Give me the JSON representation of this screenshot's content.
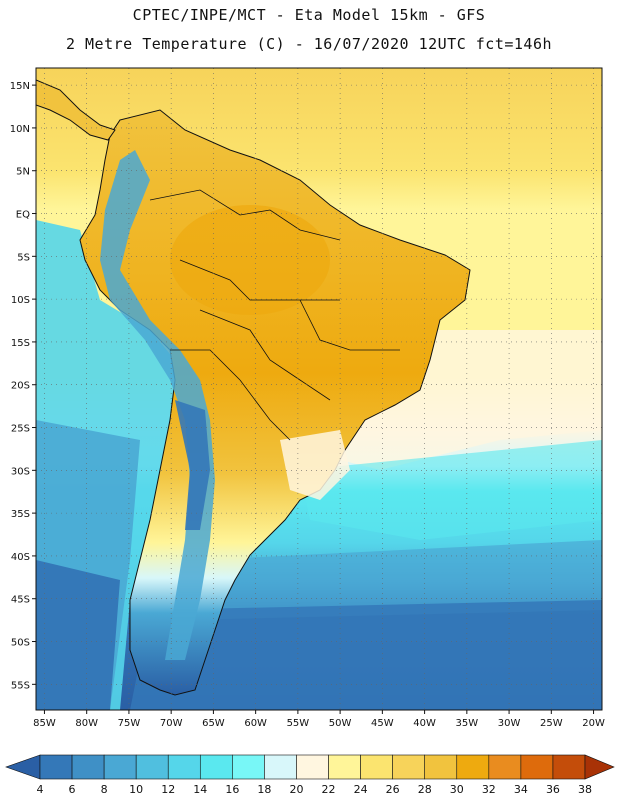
{
  "header": {
    "line1": "CPTEC/INPE/MCT -  Eta Model 15km - GFS",
    "line2": "2 Metre Temperature (C) - 16/07/2020 12UTC fct=146h"
  },
  "axes": {
    "lon_labels": [
      "85W",
      "80W",
      "75W",
      "70W",
      "65W",
      "60W",
      "55W",
      "50W",
      "45W",
      "40W",
      "35W",
      "30W",
      "25W",
      "20W"
    ],
    "lon_values": [
      -85,
      -80,
      -75,
      -70,
      -65,
      -60,
      -55,
      -50,
      -45,
      -40,
      -35,
      -30,
      -25,
      -20
    ],
    "lat_labels": [
      "15N",
      "10N",
      "5N",
      "EQ",
      "5S",
      "10S",
      "15S",
      "20S",
      "25S",
      "30S",
      "35S",
      "40S",
      "45S",
      "50S",
      "55S"
    ],
    "lat_values": [
      15,
      10,
      5,
      0,
      -5,
      -10,
      -15,
      -20,
      -25,
      -30,
      -35,
      -40,
      -45,
      -50,
      -55
    ],
    "lon_range": [
      -86,
      -19
    ],
    "lat_range": [
      -58,
      17
    ],
    "grid": "dotted"
  },
  "colorbar": {
    "labels": [
      "4",
      "6",
      "8",
      "10",
      "12",
      "14",
      "16",
      "18",
      "20",
      "22",
      "24",
      "26",
      "28",
      "30",
      "32",
      "34",
      "36",
      "38"
    ],
    "colors": [
      "#2a5fa5",
      "#3478b8",
      "#3f90c6",
      "#4aa8d4",
      "#50bfdf",
      "#55d6ea",
      "#5ae8ef",
      "#78f7f7",
      "#d8f7fa",
      "#fff6e0",
      "#fff599",
      "#fbe46f",
      "#f7d35a",
      "#f1c33e",
      "#eeaa0f",
      "#e98c1f",
      "#de6b0c",
      "#c44d0a",
      "#a83206"
    ]
  }
}
